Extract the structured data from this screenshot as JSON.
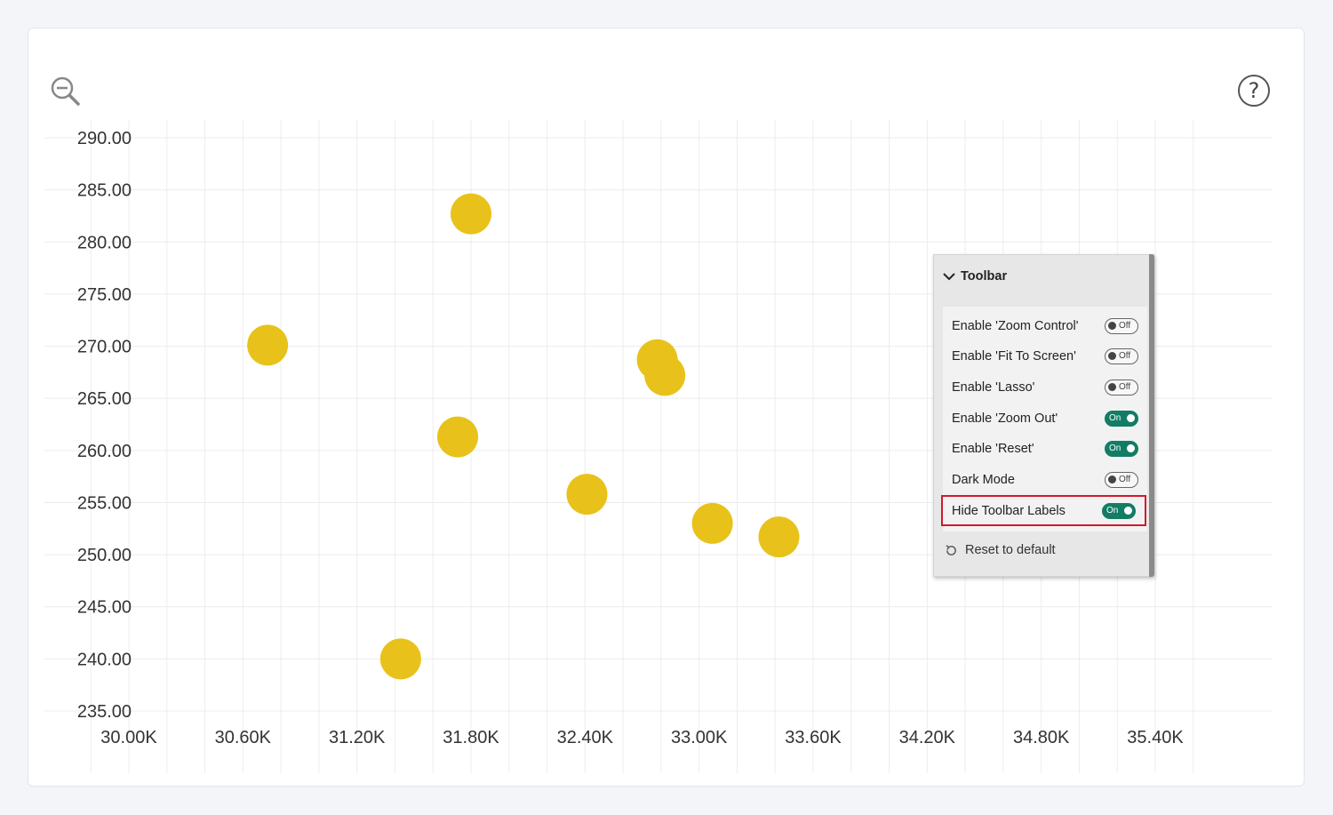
{
  "chart_data": {
    "type": "scatter",
    "xlim": [
      30000,
      35400
    ],
    "ylim": [
      235,
      290
    ],
    "x_ticks": [
      30000,
      30600,
      31200,
      31800,
      32400,
      33000,
      33600,
      34200,
      34800,
      35400
    ],
    "x_tick_labels": [
      "30.00K",
      "30.60K",
      "31.20K",
      "31.80K",
      "32.40K",
      "33.00K",
      "33.60K",
      "34.20K",
      "34.80K",
      "35.40K"
    ],
    "y_ticks": [
      290,
      285,
      280,
      275,
      270,
      265,
      260,
      255,
      250,
      245,
      240,
      235
    ],
    "y_tick_labels": [
      "290.00",
      "285.00",
      "280.00",
      "275.00",
      "270.00",
      "265.00",
      "260.00",
      "255.00",
      "250.00",
      "245.00",
      "240.00",
      "235.00"
    ],
    "grid": true,
    "point_color": "#e8c21a",
    "points": [
      {
        "x": 30730,
        "y": 270.1
      },
      {
        "x": 31800,
        "y": 282.7
      },
      {
        "x": 31730,
        "y": 261.3
      },
      {
        "x": 31430,
        "y": 240.0
      },
      {
        "x": 32410,
        "y": 255.8
      },
      {
        "x": 32780,
        "y": 268.7
      },
      {
        "x": 32820,
        "y": 267.2
      },
      {
        "x": 33070,
        "y": 253.0
      },
      {
        "x": 33420,
        "y": 251.7
      }
    ]
  },
  "toolbar_panel": {
    "title": "Toolbar",
    "options": [
      {
        "label": "Enable 'Zoom Control'",
        "state": "Off"
      },
      {
        "label": "Enable 'Fit To Screen'",
        "state": "Off"
      },
      {
        "label": "Enable 'Lasso'",
        "state": "Off"
      },
      {
        "label": "Enable 'Zoom Out'",
        "state": "On"
      },
      {
        "label": "Enable 'Reset'",
        "state": "On"
      },
      {
        "label": "Dark Mode",
        "state": "Off"
      },
      {
        "label": "Hide Toolbar Labels",
        "state": "On"
      }
    ],
    "highlighted_option": "Hide Toolbar Labels",
    "reset_label": "Reset to default"
  },
  "icons": {
    "zoom": "zoom-out-icon",
    "help": "help-icon",
    "collapse": "chevron-down-icon",
    "reset": "reset-icon"
  },
  "help_glyph": "?",
  "colors": {
    "toggle_on": "#137c65",
    "highlight_border": "#d0182a"
  }
}
